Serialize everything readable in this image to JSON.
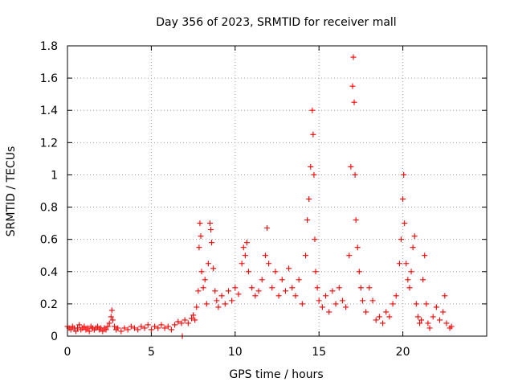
{
  "chart_data": {
    "type": "scatter",
    "title": "Day 356 of 2023, SRMTID for receiver mall",
    "xlabel": "GPS time / hours",
    "ylabel": "SRMTID / TECUs",
    "xlim": [
      0,
      25
    ],
    "ylim": [
      0,
      1.8
    ],
    "x_ticks": [
      0,
      5,
      10,
      15,
      20
    ],
    "x_tick_labels": [
      "0",
      "5",
      "10",
      "15",
      "20"
    ],
    "y_ticks": [
      0,
      0.2,
      0.4,
      0.6,
      0.8,
      1.0,
      1.2,
      1.4,
      1.6,
      1.8
    ],
    "y_tick_labels": [
      "0",
      "0.2",
      "0.4",
      "0.6",
      "0.8",
      "1",
      "1.2",
      "1.4",
      "1.6",
      "1.8"
    ],
    "grid": true,
    "marker": "plus",
    "color": "#ff0000",
    "series": [
      {
        "name": "SRMTID",
        "points": [
          [
            0.0,
            0.06
          ],
          [
            0.1,
            0.05
          ],
          [
            0.2,
            0.04
          ],
          [
            0.3,
            0.06
          ],
          [
            0.4,
            0.05
          ],
          [
            0.5,
            0.03
          ],
          [
            0.6,
            0.05
          ],
          [
            0.7,
            0.07
          ],
          [
            0.8,
            0.04
          ],
          [
            0.9,
            0.05
          ],
          [
            1.0,
            0.06
          ],
          [
            1.1,
            0.04
          ],
          [
            1.2,
            0.05
          ],
          [
            1.3,
            0.03
          ],
          [
            1.4,
            0.06
          ],
          [
            1.5,
            0.05
          ],
          [
            1.6,
            0.04
          ],
          [
            1.7,
            0.05
          ],
          [
            1.8,
            0.06
          ],
          [
            1.9,
            0.04
          ],
          [
            2.0,
            0.05
          ],
          [
            2.1,
            0.03
          ],
          [
            2.2,
            0.05
          ],
          [
            2.3,
            0.04
          ],
          [
            2.4,
            0.06
          ],
          [
            2.5,
            0.08
          ],
          [
            2.6,
            0.12
          ],
          [
            2.65,
            0.16
          ],
          [
            2.7,
            0.1
          ],
          [
            2.8,
            0.06
          ],
          [
            2.9,
            0.04
          ],
          [
            3.0,
            0.05
          ],
          [
            3.2,
            0.03
          ],
          [
            3.4,
            0.05
          ],
          [
            3.6,
            0.04
          ],
          [
            3.8,
            0.06
          ],
          [
            4.0,
            0.05
          ],
          [
            4.2,
            0.04
          ],
          [
            4.4,
            0.06
          ],
          [
            4.6,
            0.05
          ],
          [
            4.8,
            0.07
          ],
          [
            5.0,
            0.04
          ],
          [
            5.2,
            0.06
          ],
          [
            5.4,
            0.05
          ],
          [
            5.6,
            0.07
          ],
          [
            5.8,
            0.05
          ],
          [
            6.0,
            0.06
          ],
          [
            6.2,
            0.04
          ],
          [
            6.4,
            0.07
          ],
          [
            6.6,
            0.09
          ],
          [
            6.8,
            0.08
          ],
          [
            6.85,
            0.0
          ],
          [
            7.0,
            0.1
          ],
          [
            7.2,
            0.08
          ],
          [
            7.4,
            0.11
          ],
          [
            7.5,
            0.13
          ],
          [
            7.6,
            0.1
          ],
          [
            7.7,
            0.18
          ],
          [
            7.8,
            0.28
          ],
          [
            7.85,
            0.55
          ],
          [
            7.9,
            0.7
          ],
          [
            7.95,
            0.62
          ],
          [
            8.0,
            0.4
          ],
          [
            8.1,
            0.3
          ],
          [
            8.2,
            0.35
          ],
          [
            8.3,
            0.2
          ],
          [
            8.4,
            0.45
          ],
          [
            8.5,
            0.7
          ],
          [
            8.55,
            0.66
          ],
          [
            8.6,
            0.58
          ],
          [
            8.7,
            0.42
          ],
          [
            8.8,
            0.28
          ],
          [
            8.9,
            0.22
          ],
          [
            9.0,
            0.18
          ],
          [
            9.2,
            0.25
          ],
          [
            9.4,
            0.2
          ],
          [
            9.6,
            0.28
          ],
          [
            9.8,
            0.22
          ],
          [
            10.0,
            0.3
          ],
          [
            10.2,
            0.26
          ],
          [
            10.4,
            0.45
          ],
          [
            10.5,
            0.55
          ],
          [
            10.6,
            0.5
          ],
          [
            10.7,
            0.58
          ],
          [
            10.8,
            0.4
          ],
          [
            11.0,
            0.3
          ],
          [
            11.2,
            0.25
          ],
          [
            11.4,
            0.28
          ],
          [
            11.6,
            0.35
          ],
          [
            11.8,
            0.5
          ],
          [
            11.9,
            0.67
          ],
          [
            12.0,
            0.45
          ],
          [
            12.2,
            0.3
          ],
          [
            12.4,
            0.4
          ],
          [
            12.6,
            0.25
          ],
          [
            12.8,
            0.35
          ],
          [
            13.0,
            0.28
          ],
          [
            13.2,
            0.42
          ],
          [
            13.4,
            0.3
          ],
          [
            13.6,
            0.25
          ],
          [
            13.8,
            0.35
          ],
          [
            14.0,
            0.2
          ],
          [
            14.2,
            0.5
          ],
          [
            14.3,
            0.72
          ],
          [
            14.4,
            0.85
          ],
          [
            14.5,
            1.05
          ],
          [
            14.6,
            1.4
          ],
          [
            14.65,
            1.25
          ],
          [
            14.7,
            1.0
          ],
          [
            14.75,
            0.6
          ],
          [
            14.8,
            0.4
          ],
          [
            14.9,
            0.3
          ],
          [
            15.0,
            0.22
          ],
          [
            15.2,
            0.18
          ],
          [
            15.4,
            0.25
          ],
          [
            15.6,
            0.15
          ],
          [
            15.8,
            0.28
          ],
          [
            16.0,
            0.2
          ],
          [
            16.2,
            0.3
          ],
          [
            16.4,
            0.22
          ],
          [
            16.6,
            0.18
          ],
          [
            16.8,
            0.5
          ],
          [
            16.9,
            1.05
          ],
          [
            17.0,
            1.55
          ],
          [
            17.05,
            1.73
          ],
          [
            17.1,
            1.45
          ],
          [
            17.15,
            1.0
          ],
          [
            17.2,
            0.72
          ],
          [
            17.3,
            0.55
          ],
          [
            17.4,
            0.4
          ],
          [
            17.5,
            0.3
          ],
          [
            17.6,
            0.22
          ],
          [
            17.8,
            0.15
          ],
          [
            18.0,
            0.3
          ],
          [
            18.2,
            0.22
          ],
          [
            18.4,
            0.1
          ],
          [
            18.6,
            0.12
          ],
          [
            18.8,
            0.08
          ],
          [
            19.0,
            0.15
          ],
          [
            19.2,
            0.12
          ],
          [
            19.4,
            0.2
          ],
          [
            19.6,
            0.25
          ],
          [
            19.8,
            0.45
          ],
          [
            19.9,
            0.6
          ],
          [
            20.0,
            0.85
          ],
          [
            20.05,
            1.0
          ],
          [
            20.1,
            0.7
          ],
          [
            20.2,
            0.45
          ],
          [
            20.3,
            0.35
          ],
          [
            20.4,
            0.3
          ],
          [
            20.5,
            0.4
          ],
          [
            20.6,
            0.55
          ],
          [
            20.7,
            0.62
          ],
          [
            20.8,
            0.2
          ],
          [
            20.9,
            0.12
          ],
          [
            21.0,
            0.08
          ],
          [
            21.1,
            0.1
          ],
          [
            21.2,
            0.35
          ],
          [
            21.3,
            0.5
          ],
          [
            21.4,
            0.2
          ],
          [
            21.5,
            0.08
          ],
          [
            21.6,
            0.05
          ],
          [
            21.8,
            0.12
          ],
          [
            22.0,
            0.18
          ],
          [
            22.2,
            0.1
          ],
          [
            22.4,
            0.15
          ],
          [
            22.5,
            0.25
          ],
          [
            22.6,
            0.08
          ],
          [
            22.8,
            0.05
          ],
          [
            22.9,
            0.06
          ]
        ]
      }
    ]
  }
}
